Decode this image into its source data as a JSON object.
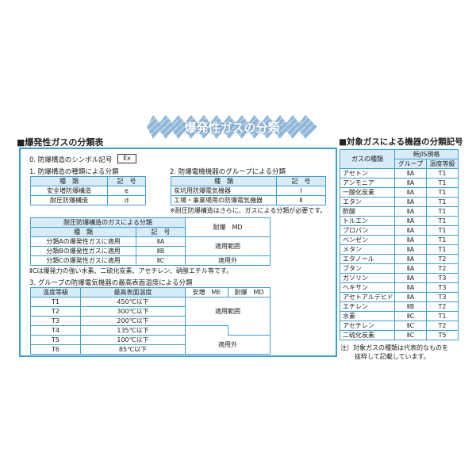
{
  "banner": {
    "title": "爆発性ガスの分類"
  },
  "left": {
    "heading": "■爆発性ガスの分類表",
    "symbol_label": "0. 防爆構造のシンボル記号",
    "symbol_value": "Ex",
    "sec1": {
      "title": "1. 防爆構造の種類による分類",
      "headers": [
        "種　類",
        "記　号"
      ],
      "rows": [
        [
          "安全増防爆構造",
          "e"
        ],
        [
          "耐圧防爆構造",
          "d"
        ]
      ]
    },
    "sec2": {
      "title": "2. 防爆電機機器のグループによる分類",
      "headers": [
        "種　類",
        "記　号"
      ],
      "rows": [
        [
          "炭坑用防爆電気機器",
          "Ⅰ"
        ],
        [
          "工場・事業場用の防爆電気機器",
          "Ⅱ"
        ]
      ],
      "note": "※耐圧防爆構造はさらに、ガスによる分類が必要です。"
    },
    "gas_table": {
      "title": "耐圧防爆構造のガスによる分類",
      "headers": [
        "種　類",
        "記　号"
      ],
      "right_header": "耐爆　MD",
      "rows": [
        [
          "分類Aの爆発性ガスに適用",
          "ⅡA"
        ],
        [
          "分類Bの爆発性ガスに適用",
          "ⅡB"
        ],
        [
          "分類Cの爆発性ガスに適用",
          "ⅡC"
        ]
      ],
      "applicable": "適用範囲",
      "not_applicable": "適用外"
    },
    "gas_note": "ⅡCは爆発力の強い水素、二硫化炭素、アセチレン、硝酸エチル等です。",
    "sec3": {
      "title": "3. グループの防爆電気機器の最高表面温度による分類",
      "headers": [
        "温度等級",
        "最高表面温度",
        "安増　ME",
        "耐爆　MD"
      ],
      "rows": [
        [
          "T1",
          "450℃以下"
        ],
        [
          "T2",
          "300℃以下"
        ],
        [
          "T3",
          "200℃以下"
        ],
        [
          "T4",
          "135℃以下"
        ],
        [
          "T5",
          "100℃以下"
        ],
        [
          "T6",
          "85℃以下"
        ]
      ],
      "applicable": "適用範囲",
      "not_applicable": "適用外"
    }
  },
  "right": {
    "heading": "■対象ガスによる機器の分類記号",
    "headers": {
      "gas": "ガスの種類",
      "jis": "新JIS規格",
      "group": "グループ",
      "temp": "温度等級"
    },
    "rows": [
      [
        "アセトン",
        "ⅡA",
        "T1"
      ],
      [
        "アンモニア",
        "ⅡA",
        "T1"
      ],
      [
        "一酸化炭素",
        "ⅡA",
        "T1"
      ],
      [
        "エタン",
        "ⅡA",
        "T1"
      ],
      [
        "酢酸",
        "ⅡA",
        "T1"
      ],
      [
        "トルエン",
        "ⅡA",
        "T1"
      ],
      [
        "プロパン",
        "ⅡA",
        "T1"
      ],
      [
        "ベンゼン",
        "ⅡA",
        "T1"
      ],
      [
        "メタン",
        "ⅡA",
        "T1"
      ],
      [
        "エタノール",
        "ⅡA",
        "T2"
      ],
      [
        "ブタン",
        "ⅡA",
        "T2"
      ],
      [
        "ガソリン",
        "ⅡA",
        "T3"
      ],
      [
        "ヘキサン",
        "ⅡA",
        "T3"
      ],
      [
        "アセトアルデヒド",
        "ⅡA",
        "T3"
      ],
      [
        "エチレン",
        "ⅡB",
        "T2"
      ],
      [
        "水素",
        "ⅡC",
        "T1"
      ],
      [
        "アセチレン",
        "ⅡC",
        "T2"
      ],
      [
        "二硫化炭素",
        "ⅡC",
        "T5"
      ]
    ],
    "note1": "注）対象ガスの種類は代表的なものを",
    "note2": "抜粋して記載しています。"
  },
  "colors": {
    "border": "#3b9fd6",
    "header_fill": "#d7ebf8"
  }
}
